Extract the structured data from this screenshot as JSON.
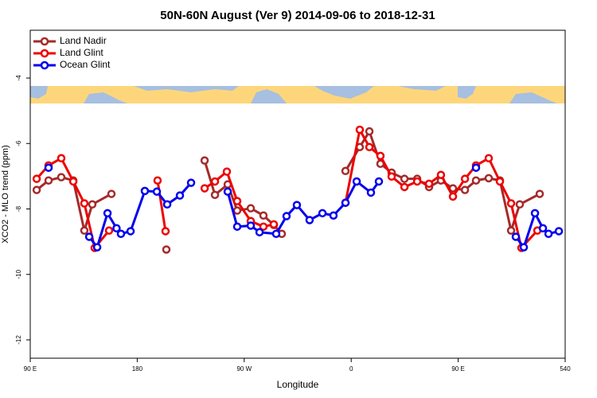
{
  "chart_data": {
    "type": "line",
    "title": "50N-60N August (Ver 9)   2014-09-06 to 2018-12-31",
    "xlabel": "Longitude",
    "ylabel": "XCO2 - MLO trend (ppm)",
    "xlim": [
      90,
      540
    ],
    "xticks": [
      {
        "value": 90,
        "label": "90 E"
      },
      180,
      {
        "value": 270,
        "label": "90 W"
      },
      {
        "value": 360,
        "label": "0"
      },
      {
        "value": 450,
        "label": "90 E"
      },
      540
    ],
    "xtick_labels_override": null,
    "ylim": [
      -12.56,
      -2.54
    ],
    "yticks": [
      -4,
      -6,
      -8,
      -10,
      -12
    ],
    "legend": "top-left",
    "series": [
      {
        "name": "Land Nadir",
        "color": "#a52a2a",
        "x": [
          95.4,
          105.4,
          116.1,
          126.2,
          135.5,
          142.2,
          158.3,
          null,
          204.5,
          null,
          236.7,
          245.4,
          256.1,
          264.1,
          275.5,
          286.2,
          294.9,
          301.6,
          null,
          355.2,
          367.2,
          375.3,
          384.6,
          394.0,
          404.8,
          415.5,
          425.5,
          435.5,
          445.6,
          455.7,
          465.0,
          475.7,
          485.1,
          494.5,
          501.8,
          518.6
        ],
        "values": [
          -7.42,
          -7.13,
          -7.03,
          -7.13,
          -8.66,
          -7.86,
          -7.54,
          null,
          -9.24,
          null,
          -6.52,
          -7.57,
          -7.25,
          -8.05,
          -7.98,
          -8.2,
          -8.49,
          -8.76,
          null,
          -6.84,
          -6.11,
          -5.63,
          -6.62,
          -6.89,
          -7.08,
          -7.08,
          -7.33,
          -7.13,
          -7.37,
          -7.42,
          -7.13,
          -7.06,
          -7.13,
          -8.66,
          -7.86,
          -7.54
        ]
      },
      {
        "name": "Land Glint",
        "color": "#ee0000",
        "x": [
          95.4,
          105.4,
          116.1,
          126.2,
          135.5,
          144.2,
          156.3,
          null,
          197.1,
          203.8,
          null,
          236.7,
          245.4,
          255.4,
          264.1,
          275.5,
          286.2,
          294.9,
          null,
          355.2,
          367.2,
          375.3,
          384.6,
          394.0,
          404.8,
          415.5,
          425.5,
          435.5,
          445.6,
          455.7,
          465.0,
          475.7,
          485.1,
          494.5,
          503.2,
          516.6
        ],
        "values": [
          -7.08,
          -6.67,
          -6.45,
          -7.16,
          -7.83,
          -9.19,
          -8.66,
          null,
          -7.13,
          -8.68,
          null,
          -7.37,
          -7.16,
          -6.86,
          -7.76,
          -8.37,
          -8.54,
          -8.47,
          null,
          -7.81,
          -5.58,
          -6.11,
          -6.38,
          -7.01,
          -7.33,
          -7.16,
          -7.23,
          -6.96,
          -7.62,
          -7.08,
          -6.67,
          -6.45,
          -7.16,
          -7.83,
          -9.19,
          -8.66
        ]
      },
      {
        "name": "Ocean Glint",
        "color": "#0000ee",
        "x": [
          105.4,
          null,
          139.6,
          146.3,
          155.0,
          162.6,
          166.3,
          174.4,
          186.4,
          196.5,
          205.2,
          215.9,
          225.3,
          null,
          256.1,
          264.1,
          275.5,
          282.9,
          296.9,
          305.6,
          314.3,
          325.0,
          335.8,
          345.1,
          355.2,
          364.6,
          376.6,
          383.3,
          null,
          465.0,
          null,
          498.5,
          505.2,
          514.6,
          521.3,
          526.0,
          534.7
        ],
        "values": [
          -6.74,
          null,
          -8.85,
          -9.17,
          -8.13,
          -8.59,
          -8.76,
          -8.68,
          -7.45,
          -7.47,
          -7.86,
          -7.59,
          -7.2,
          null,
          -7.47,
          -8.54,
          -8.51,
          -8.71,
          -8.76,
          -8.22,
          -7.88,
          -8.34,
          -8.13,
          -8.2,
          -7.81,
          -7.16,
          -7.5,
          -7.16,
          null,
          -6.74,
          null,
          -8.85,
          -9.17,
          -8.13,
          -8.59,
          -8.76,
          -8.68
        ]
      }
    ]
  }
}
